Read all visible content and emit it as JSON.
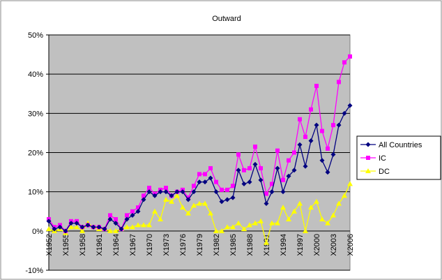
{
  "chart_data": {
    "type": "line",
    "title": "Outward",
    "categories": [
      "X1952",
      null,
      null,
      "X1955",
      null,
      null,
      "X1958",
      null,
      null,
      "X1961",
      null,
      null,
      "X1964",
      null,
      null,
      "X1967",
      null,
      null,
      "X1970",
      null,
      null,
      "X1973",
      null,
      null,
      "X1976",
      null,
      null,
      "X1979",
      null,
      null,
      "X1982",
      null,
      null,
      "X1985",
      null,
      null,
      "X1988",
      null,
      null,
      "X1991",
      null,
      null,
      "X1994",
      null,
      null,
      "X1997",
      null,
      null,
      "X2000",
      null,
      null,
      "X2003",
      null,
      null,
      "X2006"
    ],
    "series": [
      {
        "name": "All Countries",
        "color": "#000080",
        "marker": "diamond",
        "values": [
          2.5,
          0.5,
          1,
          0,
          2,
          2,
          1,
          1.5,
          1,
          1,
          0.5,
          3,
          2,
          0.5,
          3,
          4,
          5,
          8,
          10,
          9,
          10,
          10,
          9,
          10,
          10,
          8,
          10,
          12.5,
          12.5,
          13.5,
          10,
          7.5,
          8,
          8.5,
          15.5,
          12,
          12.5,
          17,
          13,
          7,
          10,
          16,
          10,
          14,
          15.5,
          22,
          16.5,
          23,
          27,
          18,
          15,
          19.5,
          27,
          30,
          32
        ]
      },
      {
        "name": "IC",
        "color": "#ff00ff",
        "marker": "square",
        "values": [
          3,
          1,
          1.5,
          0,
          2.5,
          2.5,
          1,
          1.5,
          1,
          1,
          0.5,
          4,
          3,
          0.5,
          4,
          5,
          6,
          9,
          11,
          9.5,
          10.5,
          11,
          9,
          10,
          10.5,
          8.5,
          11.5,
          14.5,
          14.5,
          16,
          12.5,
          10.5,
          10.5,
          11.5,
          19.5,
          15.5,
          16,
          21.5,
          16,
          9.5,
          12,
          20.5,
          13,
          18,
          20,
          28.5,
          24,
          31,
          37,
          25.5,
          21,
          27,
          38,
          43,
          44.5
        ]
      },
      {
        "name": "DC",
        "color": "#ffff00",
        "marker": "triangle",
        "values": [
          0.5,
          0,
          0.5,
          -0.5,
          1,
          1,
          0,
          2,
          1,
          0.5,
          0.5,
          0,
          0,
          0.5,
          1,
          1,
          1.5,
          1.5,
          1.5,
          5,
          3,
          8,
          7.5,
          9,
          6,
          4.5,
          6.5,
          7,
          7,
          4.5,
          0,
          0,
          1,
          1,
          2,
          0.5,
          1.5,
          2,
          2.5,
          -3,
          2,
          2,
          6,
          3,
          5,
          7,
          0,
          6,
          7.5,
          3,
          2,
          4,
          7,
          9,
          12
        ]
      }
    ],
    "ylim": [
      -10,
      50
    ],
    "yticks": [
      {
        "value": -10,
        "label": "-10%"
      },
      {
        "value": 0,
        "label": "0%"
      },
      {
        "value": 10,
        "label": "10%"
      },
      {
        "value": 20,
        "label": "20%"
      },
      {
        "value": 30,
        "label": "30%"
      },
      {
        "value": 40,
        "label": "40%"
      },
      {
        "value": 50,
        "label": "50%"
      }
    ],
    "grid": true,
    "legend": "right",
    "plot_background": "#c0c0c0"
  }
}
